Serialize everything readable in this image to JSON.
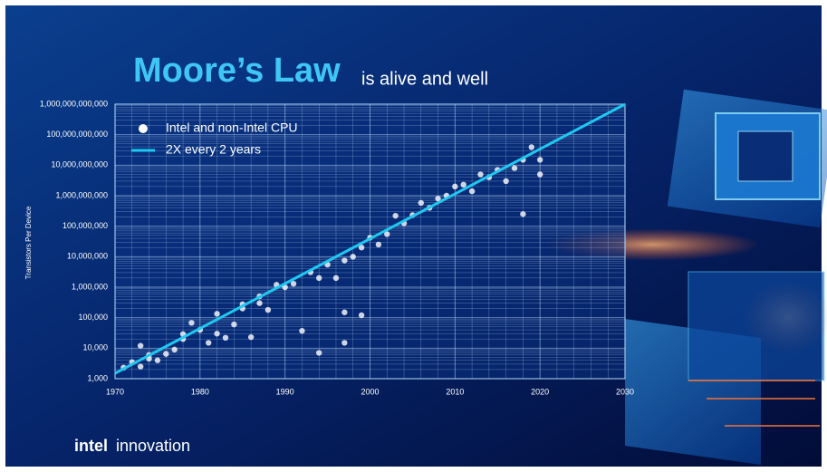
{
  "chart_data": {
    "type": "scatter",
    "title": "Moore’s Law",
    "subtitle": "is alive and well",
    "y_label": "Transistors Per Device",
    "yscale": "log",
    "grid": true,
    "legend": "top-left",
    "xlim": [
      1970,
      2030
    ],
    "xticks": [
      1970,
      1980,
      1990,
      2000,
      2010,
      2020,
      2030
    ],
    "ylim": [
      1000,
      1000000000000
    ],
    "yticks": [
      {
        "value": 1000,
        "label": "1,000"
      },
      {
        "value": 10000,
        "label": "10,000"
      },
      {
        "value": 100000,
        "label": "100,000"
      },
      {
        "value": 1000000,
        "label": "1,000,000"
      },
      {
        "value": 10000000,
        "label": "10,000,000"
      },
      {
        "value": 100000000,
        "label": "100,000,000"
      },
      {
        "value": 1000000000,
        "label": "1,000,000,000"
      },
      {
        "value": 10000000000,
        "label": "10,000,000,000"
      },
      {
        "value": 100000000000,
        "label": "100,000,000,000"
      },
      {
        "value": 1000000000000,
        "label": "1,000,000,000,000"
      }
    ],
    "series": [
      {
        "name": "Intel and non-Intel CPU",
        "color": "#ffffff",
        "type": "scatter",
        "x": [
          1971,
          1972,
          1973,
          1973,
          1974,
          1974,
          1975,
          1976,
          1977,
          1978,
          1978,
          1979,
          1980,
          1981,
          1982,
          1982,
          1983,
          1984,
          1985,
          1985,
          1986,
          1987,
          1987,
          1988,
          1989,
          1990,
          1991,
          1992,
          1993,
          1994,
          1994,
          1995,
          1996,
          1997,
          1997,
          1997,
          1998,
          1999,
          1999,
          2000,
          2001,
          2002,
          2003,
          2004,
          2005,
          2006,
          2007,
          2008,
          2009,
          2010,
          2011,
          2012,
          2013,
          2014,
          2015,
          2016,
          2017,
          2018,
          2018,
          2019,
          2020,
          2020
        ],
        "values": [
          2300,
          3500,
          12000,
          2500,
          6000,
          4500,
          4000,
          6500,
          9000,
          29000,
          20000,
          68000,
          40000,
          15000,
          134000,
          30000,
          22000,
          60000,
          275000,
          200000,
          23000,
          500000,
          300000,
          180000,
          1200000,
          1000000,
          1300000,
          37000,
          3100000,
          2000000,
          7000,
          5500000,
          2000000,
          7500000,
          150000,
          15000,
          10000000,
          120000,
          20000000,
          42000000,
          25000000,
          55000000,
          220000000,
          125000000,
          230000000,
          580000000,
          400000000,
          800000000,
          1000000000,
          2000000000,
          2300000000,
          1400000000,
          5000000000,
          4000000000,
          7000000000,
          3000000000,
          8000000000,
          15000000000,
          250000000,
          39000000000,
          15000000000,
          5000000000
        ]
      },
      {
        "name": "2X every 2 years",
        "color": "#1ec8f0",
        "type": "line",
        "x": [
          1970,
          2030
        ],
        "values": [
          1500,
          1000000000000
        ]
      }
    ]
  },
  "logo": {
    "brand": "intel",
    "product": "innovation"
  }
}
